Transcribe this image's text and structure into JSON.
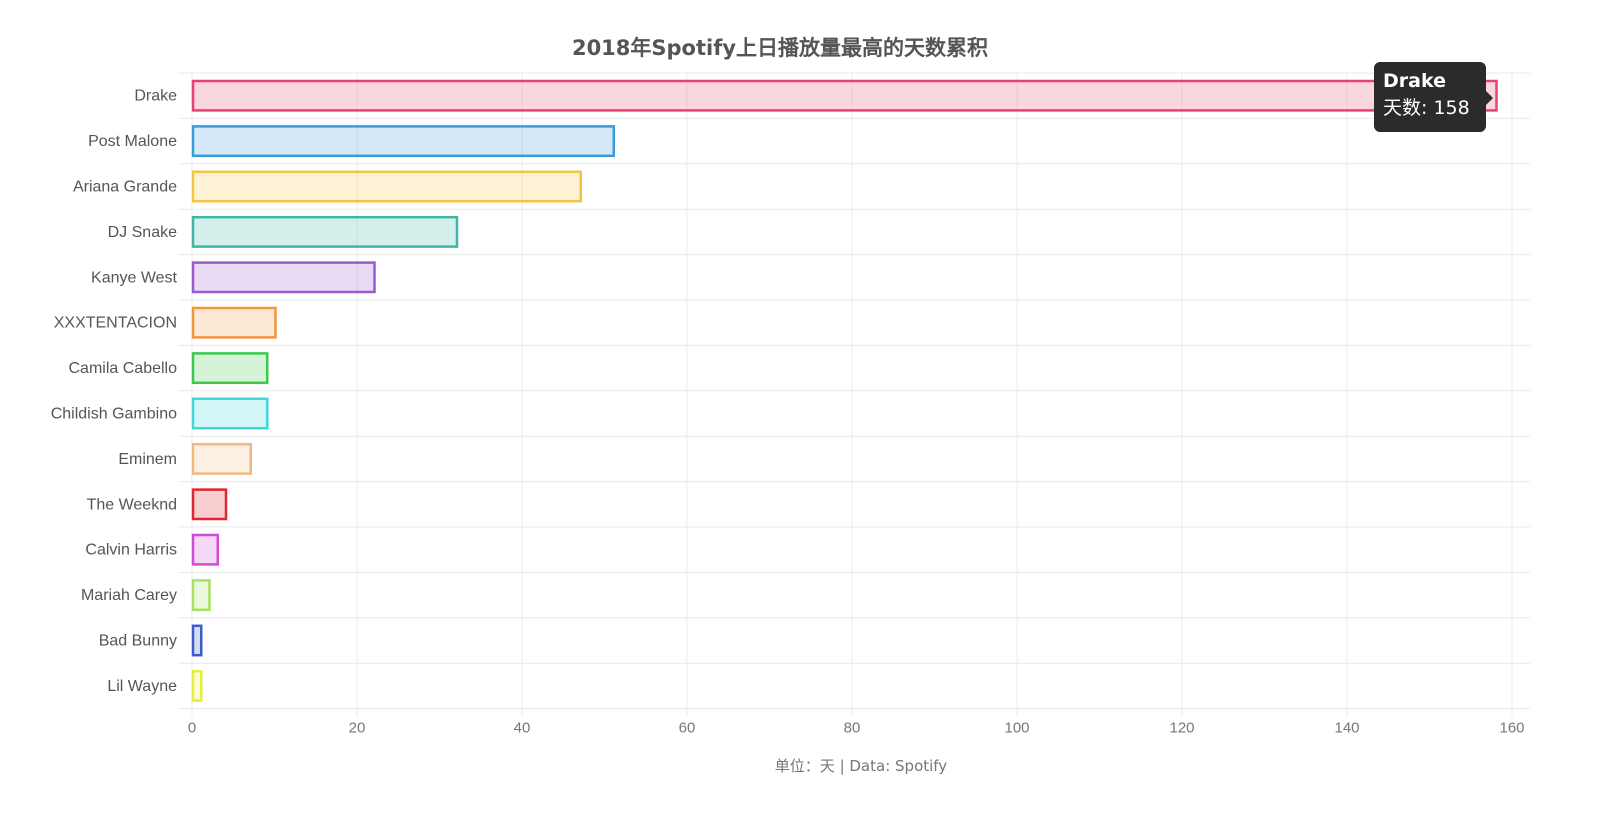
{
  "chart_data": {
    "type": "bar",
    "orientation": "horizontal",
    "title": "2018年Spotify上日播放量最高的天数累积",
    "caption": "单位：天 |  Data: Spotify",
    "categories": [
      "Drake",
      "Post Malone",
      "Ariana Grande",
      "DJ Snake",
      "Kanye West",
      "XXXTENTACION",
      "Camila Cabello",
      "Childish Gambino",
      "Eminem",
      "The Weeknd",
      "Calvin Harris",
      "Mariah Carey",
      "Bad Bunny",
      "Lil Wayne"
    ],
    "values": [
      158,
      51,
      47,
      32,
      22,
      10,
      9,
      9,
      7,
      4,
      3,
      2,
      1,
      1
    ],
    "colors": [
      "#e8436f",
      "#3a9bdc",
      "#f5c542",
      "#3fb6a8",
      "#9b59d0",
      "#f0963c",
      "#3cc84a",
      "#3fd6dc",
      "#f0b880",
      "#e0262e",
      "#d24ad8",
      "#a8e060",
      "#3b5fc8",
      "#e6ee40"
    ],
    "xlim": [
      0,
      160
    ],
    "x_ticks": [
      0,
      20,
      40,
      60,
      80,
      100,
      120,
      140,
      160
    ],
    "grid": true,
    "tooltip": {
      "title": "Drake",
      "label": "天数: 158"
    }
  }
}
